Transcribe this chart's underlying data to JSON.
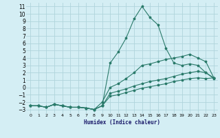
{
  "xlabel": "Humidex (Indice chaleur)",
  "bg_color": "#d4eef4",
  "grid_color": "#b0d4dc",
  "line_color": "#2a7a6a",
  "xlim": [
    -0.5,
    23.5
  ],
  "ylim": [
    -3.5,
    11.5
  ],
  "xticks": [
    0,
    1,
    2,
    3,
    4,
    5,
    6,
    7,
    8,
    9,
    10,
    11,
    12,
    13,
    14,
    15,
    16,
    17,
    18,
    19,
    20,
    21,
    22,
    23
  ],
  "yticks": [
    -3,
    -2,
    -1,
    0,
    1,
    2,
    3,
    4,
    5,
    6,
    7,
    8,
    9,
    10,
    11
  ],
  "line1_x": [
    0,
    1,
    2,
    3,
    4,
    5,
    6,
    7,
    8,
    9,
    10,
    11,
    12,
    13,
    14,
    15,
    16,
    17,
    18,
    19,
    20,
    21,
    22,
    23
  ],
  "line1_y": [
    -2.5,
    -2.5,
    -2.7,
    -2.3,
    -2.5,
    -2.7,
    -2.7,
    -2.8,
    -3.0,
    -2.5,
    3.3,
    4.8,
    6.7,
    9.3,
    11.0,
    9.5,
    8.5,
    5.3,
    3.3,
    3.0,
    3.2,
    3.0,
    2.0,
    1.2
  ],
  "line2_x": [
    0,
    1,
    2,
    3,
    4,
    5,
    6,
    7,
    8,
    9,
    10,
    11,
    12,
    13,
    14,
    15,
    16,
    17,
    18,
    19,
    20,
    21,
    22,
    23
  ],
  "line2_y": [
    -2.5,
    -2.5,
    -2.7,
    -2.3,
    -2.5,
    -2.7,
    -2.7,
    -2.8,
    -3.0,
    -2.0,
    0.0,
    0.5,
    1.2,
    2.0,
    3.0,
    3.2,
    3.5,
    3.8,
    4.0,
    4.2,
    4.5,
    4.0,
    3.5,
    1.3
  ],
  "line3_x": [
    0,
    1,
    2,
    3,
    4,
    5,
    6,
    7,
    8,
    9,
    10,
    11,
    12,
    13,
    14,
    15,
    16,
    17,
    18,
    19,
    20,
    21,
    22,
    23
  ],
  "line3_y": [
    -2.5,
    -2.5,
    -2.7,
    -2.3,
    -2.5,
    -2.7,
    -2.7,
    -2.8,
    -3.0,
    -2.5,
    -0.8,
    -0.5,
    -0.2,
    0.2,
    0.5,
    0.8,
    1.0,
    1.2,
    1.5,
    1.8,
    2.0,
    2.2,
    2.0,
    1.3
  ],
  "line4_x": [
    0,
    1,
    2,
    3,
    4,
    5,
    6,
    7,
    8,
    9,
    10,
    11,
    12,
    13,
    14,
    15,
    16,
    17,
    18,
    19,
    20,
    21,
    22,
    23
  ],
  "line4_y": [
    -2.5,
    -2.5,
    -2.7,
    -2.3,
    -2.5,
    -2.7,
    -2.7,
    -2.8,
    -3.0,
    -2.5,
    -1.2,
    -1.0,
    -0.7,
    -0.4,
    -0.1,
    0.1,
    0.3,
    0.5,
    0.8,
    1.0,
    1.2,
    1.3,
    1.2,
    1.3
  ]
}
